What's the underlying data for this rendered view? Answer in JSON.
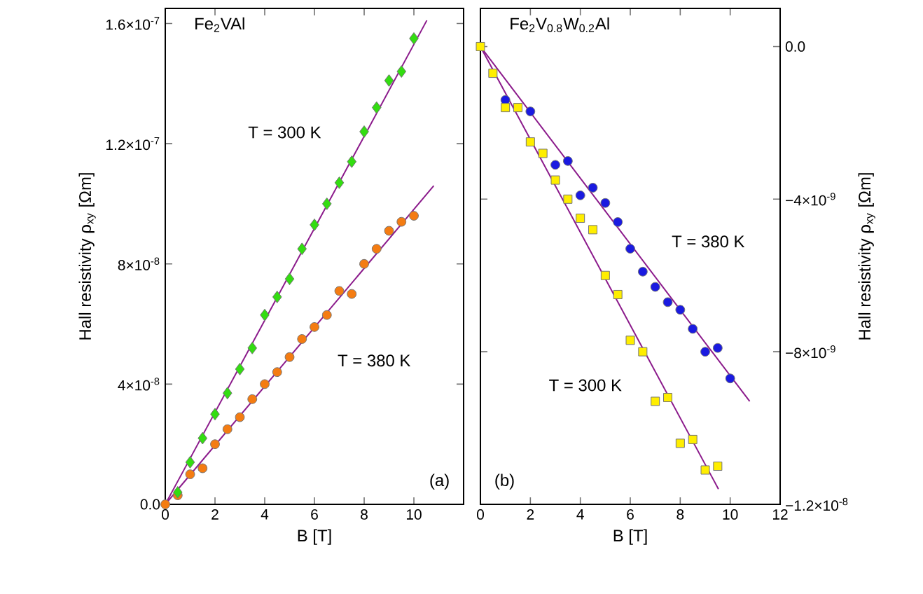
{
  "chart_data": [
    {
      "type": "scatter",
      "title": "Fe$_{2}$VAl",
      "xlabel": "B [T]",
      "ylabel": "Hall resistivity ρ$_{xy}$ [Ωm]",
      "xlim": [
        0,
        12
      ],
      "xticks": [
        0,
        2,
        4,
        6,
        8,
        10
      ],
      "ylim": [
        0,
        1.65e-07
      ],
      "yticks": [
        {
          "value": 0,
          "label": "0.0"
        },
        {
          "value": 4e-08,
          "label": "4×10$^{-8}$"
        },
        {
          "value": 8e-08,
          "label": "8×10$^{-8}$"
        },
        {
          "value": 1.2e-07,
          "label": "1.2×10$^{-7}$"
        },
        {
          "value": 1.6e-07,
          "label": "1.6×10$^{-7}$"
        }
      ],
      "series": [
        {
          "marker": "circle",
          "color": "#f47c12",
          "x": [
            0,
            0.5,
            1,
            1.5,
            2,
            2.5,
            3,
            3.5,
            4,
            4.5,
            5,
            5.5,
            6,
            6.5,
            7,
            7.5,
            8,
            8.5,
            9,
            9.5,
            10
          ],
          "values": [
            0,
            3e-09,
            1e-08,
            1.2e-08,
            2e-08,
            2.5e-08,
            2.9e-08,
            3.5e-08,
            4e-08,
            4.4e-08,
            4.9e-08,
            5.5e-08,
            5.9e-08,
            6.3e-08,
            7.1e-08,
            7e-08,
            8e-08,
            8.5e-08,
            9.1e-08,
            9.4e-08,
            9.6e-08
          ]
        },
        {
          "marker": "diamond",
          "color": "#33dd11",
          "x": [
            0.5,
            1,
            1.5,
            2,
            2.5,
            3,
            3.5,
            4,
            4.5,
            5,
            5.5,
            6,
            6.5,
            7,
            7.5,
            8,
            8.5,
            9,
            9.5,
            10
          ],
          "values": [
            4e-09,
            1.4e-08,
            2.2e-08,
            3e-08,
            3.7e-08,
            4.5e-08,
            5.2e-08,
            6.3e-08,
            6.9e-08,
            7.5e-08,
            8.5e-08,
            9.3e-08,
            1e-07,
            1.07e-07,
            1.14e-07,
            1.24e-07,
            1.32e-07,
            1.41e-07,
            1.44e-07,
            1.55e-07
          ]
        },
        {
          "type": "line",
          "marker": "none",
          "color": "#8b1a8b",
          "x": [
            0,
            10.52
          ],
          "values": [
            0,
            1.61e-07
          ]
        },
        {
          "type": "line",
          "marker": "none",
          "color": "#8b1a8b",
          "x": [
            0,
            10.8
          ],
          "values": [
            0,
            1.06e-07
          ]
        }
      ],
      "annotations": [
        "T = 300 K",
        "T = 380 K",
        "(a)"
      ]
    },
    {
      "type": "scatter",
      "title": "Fe$_{2}$V$_{0.8}$W$_{0.2}$Al",
      "xlabel": "B [T]",
      "y2label": "Hall resistivity ρ$_{xy}$ [Ωm]",
      "xlim": [
        0,
        12
      ],
      "xticks": [
        0,
        2,
        4,
        6,
        8,
        10,
        12
      ],
      "y2lim": [
        -1.2e-08,
        1e-09
      ],
      "y2ticks": [
        {
          "value": 0,
          "label": "0.0"
        },
        {
          "value": -4e-09,
          "label": "−4×10$^{-9}$"
        },
        {
          "value": -8e-09,
          "label": "−8×10$^{-9}$"
        },
        {
          "value": -1.2e-08,
          "label": "−1.2×10$^{-8}$"
        }
      ],
      "series": [
        {
          "axis": "y2",
          "marker": "circle",
          "color": "#1a1ae0",
          "x": [
            1,
            2,
            3,
            3.5,
            4,
            4.5,
            5,
            5.5,
            6,
            6.5,
            7,
            7.5,
            8,
            8.5,
            9,
            9.5,
            10
          ],
          "values": [
            -1.4e-09,
            -1.7e-09,
            -3.1e-09,
            -3e-09,
            -3.9e-09,
            -3.7e-09,
            -4.1e-09,
            -4.6e-09,
            -5.3e-09,
            -5.9e-09,
            -6.3e-09,
            -6.7e-09,
            -6.9e-09,
            -7.4e-09,
            -8e-09,
            -7.9e-09,
            -8.7e-09
          ]
        },
        {
          "axis": "y2",
          "marker": "square",
          "color": "#ffee00",
          "x": [
            0,
            0.5,
            1,
            1.5,
            2,
            2.5,
            3,
            3.5,
            4,
            4.5,
            5,
            5.5,
            6,
            6.5,
            7,
            7.5,
            8,
            8.5,
            9,
            9.5
          ],
          "values": [
            0,
            -7e-10,
            -1.6e-09,
            -1.6e-09,
            -2.5e-09,
            -2.8e-09,
            -3.5e-09,
            -4e-09,
            -4.5e-09,
            -4.8e-09,
            -6e-09,
            -6.5e-09,
            -7.7e-09,
            -8e-09,
            -9.3e-09,
            -9.2e-09,
            -1.04e-08,
            -1.03e-08,
            -1.11e-08,
            -1.1e-08
          ]
        },
        {
          "type": "line",
          "axis": "y2",
          "marker": "none",
          "color": "#8b1a8b",
          "x": [
            0,
            10.78
          ],
          "values": [
            0,
            -9.3e-09
          ]
        },
        {
          "type": "line",
          "axis": "y2",
          "marker": "none",
          "color": "#8b1a8b",
          "x": [
            0,
            9.53
          ],
          "values": [
            0,
            -1.16e-08
          ]
        }
      ],
      "annotations": [
        "T = 380 K",
        "T = 300 K",
        "(b)"
      ]
    }
  ]
}
